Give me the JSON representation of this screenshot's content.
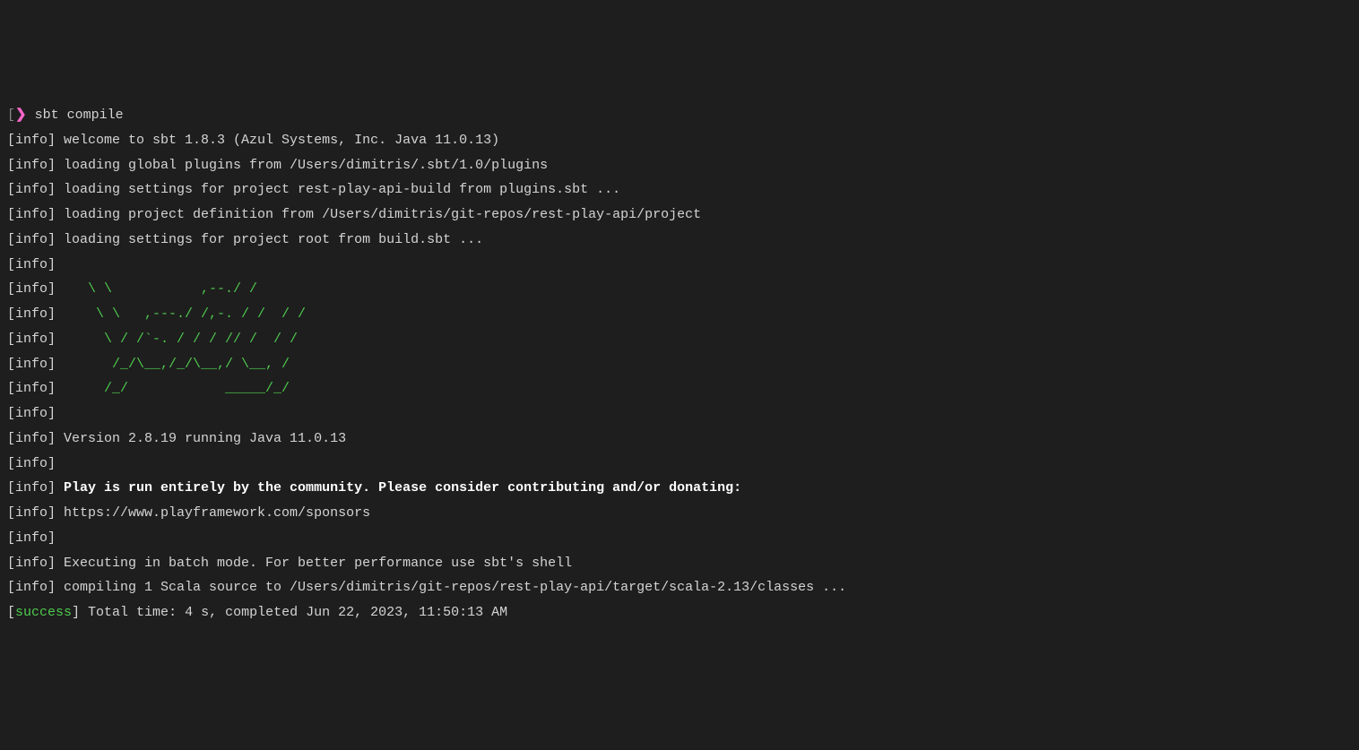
{
  "colors": {
    "background": "#1e1e1e",
    "text": "#d4d4d4",
    "bracket": "#888888",
    "arrow": "#ff66cc",
    "ascii": "#4ec94e",
    "success": "#4ec94e",
    "bold": "#ffffff"
  },
  "prompt": {
    "open_bracket": "[",
    "arrow": "❯",
    "command": "sbt compile"
  },
  "tags": {
    "info": "[info]",
    "success_open": "[",
    "success_word": "success",
    "success_close": "]"
  },
  "lines": {
    "welcome": " welcome to sbt 1.8.3 (Azul Systems, Inc. Java 11.0.13)",
    "global_plugins": " loading global plugins from /Users/dimitris/.sbt/1.0/plugins",
    "settings_build": " loading settings for project rest-play-api-build from plugins.sbt ...",
    "project_def": " loading project definition from /Users/dimitris/git-repos/rest-play-api/project",
    "settings_root": " loading settings for project root from build.sbt ...",
    "empty": "",
    "ascii1": "    \\ \\           ,--./ /       ",
    "ascii2": "     \\ \\   ,---./ /,-. / /  / / ",
    "ascii3": "      \\ / /`-. / / / // /  / /  ",
    "ascii4": "       /_/\\__,/_/\\__,/ \\__, /   ",
    "ascii5": "      /_/            _____/_/    ",
    "version": " Version 2.8.19 running Java 11.0.13",
    "community": " Play is run entirely by the community. Please consider contributing and/or donating:",
    "sponsors": " https://www.playframework.com/sponsors",
    "batch": " Executing in batch mode. For better performance use sbt's shell",
    "compiling": " compiling 1 Scala source to /Users/dimitris/git-repos/rest-play-api/target/scala-2.13/classes ...",
    "total_time": " Total time: 4 s, completed Jun 22, 2023, 11:50:13 AM"
  }
}
